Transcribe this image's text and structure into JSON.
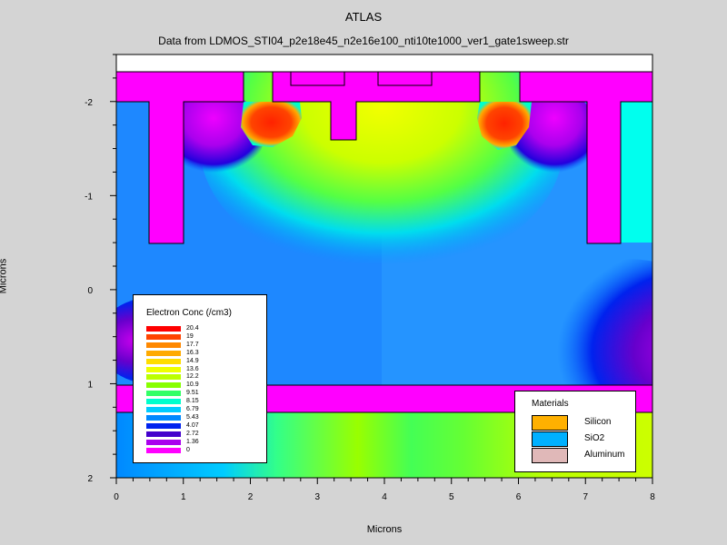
{
  "chart_data": {
    "type": "heatmap",
    "title": "ATLAS",
    "subtitle": "Data from LDMOS_STI04_p2e18e45_n2e16e100_nti10te1000_ver1_gate1sweep.str",
    "xlabel": "Microns",
    "ylabel": "Microns",
    "xlim": [
      0,
      8
    ],
    "ylim": [
      -2.5,
      2
    ],
    "y_inverted": true,
    "x_ticks": [
      "0",
      "1",
      "2",
      "3",
      "4",
      "5",
      "6",
      "7",
      "8"
    ],
    "y_ticks": [
      {
        "value": -2,
        "label": "-2"
      },
      {
        "value": -1,
        "label": "-1"
      },
      {
        "value": 0,
        "label": "0"
      },
      {
        "value": 1,
        "label": "1"
      },
      {
        "value": 2,
        "label": "2"
      }
    ],
    "legend": {
      "title": "Electron Conc (/cm3)",
      "levels": [
        "20.4",
        "19",
        "17.7",
        "16.3",
        "14.9",
        "13.6",
        "12.2",
        "10.9",
        "9.51",
        "8.15",
        "6.79",
        "5.43",
        "4.07",
        "2.72",
        "1.36",
        "0"
      ],
      "colors": [
        "#ff0000",
        "#ff4400",
        "#ff8800",
        "#ffaa00",
        "#ffdd00",
        "#eeff00",
        "#bbff00",
        "#88ff00",
        "#33ff66",
        "#00ffcc",
        "#00ccff",
        "#0088ff",
        "#0022ee",
        "#4400cc",
        "#aa00ee",
        "#ff00ff"
      ],
      "placement": "bottom-left"
    },
    "materials_legend": {
      "title": "Materials",
      "items": [
        {
          "label": "Silicon",
          "color": "#ffb000"
        },
        {
          "label": "SiO2",
          "color": "#00b0ff"
        },
        {
          "label": "Aluminum",
          "color": "#e0b8b8"
        }
      ],
      "placement": "bottom-right"
    },
    "regions": {
      "oxide_color": "#ff00ff",
      "top_cap_color": "#ffffff"
    }
  }
}
